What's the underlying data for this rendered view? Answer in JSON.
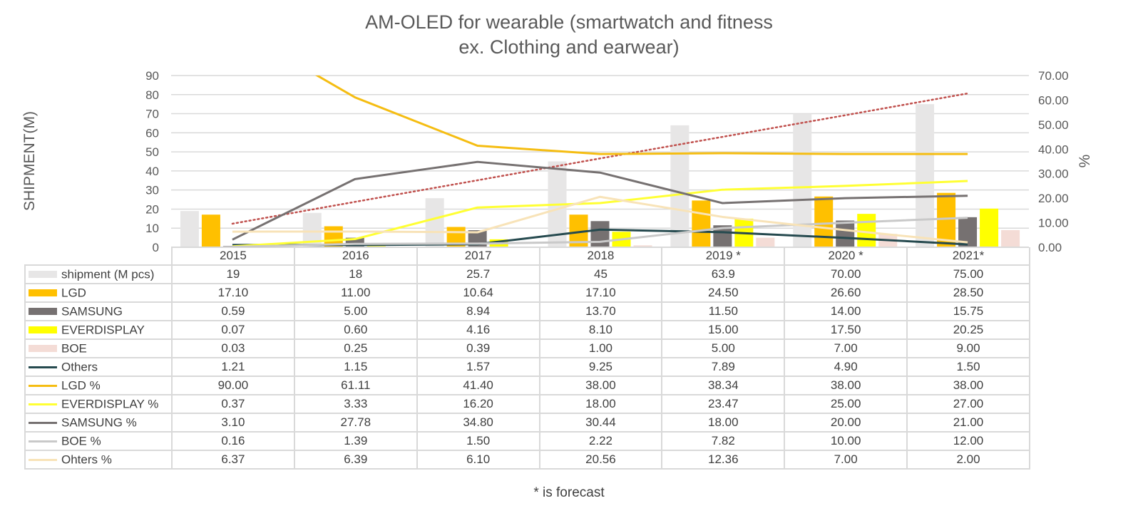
{
  "chart_data": {
    "type": "bar",
    "title_line1": "AM-OLED for wearable (smartwatch and fitness",
    "title_line2": "ex. Clothing and earwear)",
    "ylabel": "SHIPMENT(M)",
    "y2label": "%",
    "ylim": [
      0,
      90
    ],
    "y2lim": [
      0,
      70
    ],
    "yticks": [
      "0",
      "10",
      "20",
      "30",
      "40",
      "50",
      "60",
      "70",
      "80",
      "90"
    ],
    "y2ticks": [
      "0.00",
      "10.00",
      "20.00",
      "30.00",
      "40.00",
      "50.00",
      "60.00",
      "70.00"
    ],
    "categories": [
      "2015",
      "2016",
      "2017",
      "2018",
      "2019 *",
      "2020 *",
      "2021*"
    ],
    "grid": true,
    "legend": "data-table",
    "series": [
      {
        "name": "shipment (M pcs)",
        "type": "bar",
        "axis": "left",
        "color": "#e7e6e6",
        "values": [
          19,
          18,
          25.7,
          45,
          63.9,
          70,
          75
        ],
        "labels": [
          "19",
          "18",
          "25.7",
          "45",
          "63.9",
          "70.00",
          "75.00"
        ]
      },
      {
        "name": "LGD",
        "type": "bar",
        "axis": "left",
        "color": "#ffc000",
        "values": [
          17.1,
          11.0,
          10.64,
          17.1,
          24.5,
          26.6,
          28.5
        ],
        "labels": [
          "17.10",
          "11.00",
          "10.64",
          "17.10",
          "24.50",
          "26.60",
          "28.50"
        ]
      },
      {
        "name": "SAMSUNG",
        "type": "bar",
        "axis": "left",
        "color": "#767171",
        "values": [
          0.59,
          5.0,
          8.94,
          13.7,
          11.5,
          14.0,
          15.75
        ],
        "labels": [
          "0.59",
          "5.00",
          "8.94",
          "13.70",
          "11.50",
          "14.00",
          "15.75"
        ]
      },
      {
        "name": "EVERDISPLAY",
        "type": "bar",
        "axis": "left",
        "color": "#ffff00",
        "values": [
          0.07,
          0.6,
          4.16,
          8.1,
          15.0,
          17.5,
          20.25
        ],
        "labels": [
          "0.07",
          "0.60",
          "4.16",
          "8.10",
          "15.00",
          "17.50",
          "20.25"
        ]
      },
      {
        "name": "BOE",
        "type": "bar",
        "axis": "left",
        "color": "#f4dcd6",
        "values": [
          0.03,
          0.25,
          0.39,
          1.0,
          5.0,
          7.0,
          9.0
        ],
        "labels": [
          "0.03",
          "0.25",
          "0.39",
          "1.00",
          "5.00",
          "7.00",
          "9.00"
        ]
      },
      {
        "name": "Others",
        "type": "line",
        "axis": "left",
        "color": "#264a4f",
        "values": [
          1.21,
          1.15,
          1.57,
          9.25,
          7.89,
          4.9,
          1.5
        ],
        "labels": [
          "1.21",
          "1.15",
          "1.57",
          "9.25",
          "7.89",
          "4.90",
          "1.50"
        ]
      },
      {
        "name": "LGD %",
        "type": "line",
        "axis": "right",
        "color": "#f5bd12",
        "values": [
          90.0,
          61.11,
          41.4,
          38.0,
          38.34,
          38.0,
          38.0
        ],
        "labels": [
          "90.00",
          "61.11",
          "41.40",
          "38.00",
          "38.34",
          "38.00",
          "38.00"
        ]
      },
      {
        "name": "EVERDISPLAY %",
        "type": "line",
        "axis": "right",
        "color": "#ffff33",
        "values": [
          0.37,
          3.33,
          16.2,
          18.0,
          23.47,
          25.0,
          27.0
        ],
        "labels": [
          "0.37",
          "3.33",
          "16.20",
          "18.00",
          "23.47",
          "25.00",
          "27.00"
        ]
      },
      {
        "name": "SAMSUNG %",
        "type": "line",
        "axis": "right",
        "color": "#767171",
        "values": [
          3.1,
          27.78,
          34.8,
          30.44,
          18.0,
          20.0,
          21.0
        ],
        "labels": [
          "3.10",
          "27.78",
          "34.80",
          "30.44",
          "18.00",
          "20.00",
          "21.00"
        ]
      },
      {
        "name": "BOE %",
        "type": "line",
        "axis": "right",
        "color": "#c9c9c9",
        "values": [
          0.16,
          1.39,
          1.5,
          2.22,
          7.82,
          10.0,
          12.0
        ],
        "labels": [
          "0.16",
          "1.39",
          "1.50",
          "2.22",
          "7.82",
          "10.00",
          "12.00"
        ]
      },
      {
        "name": "Ohters %",
        "type": "line",
        "axis": "right",
        "color": "#f8e3b8",
        "values": [
          6.37,
          6.39,
          6.1,
          20.56,
          12.36,
          7.0,
          2.0
        ],
        "labels": [
          "6.37",
          "6.39",
          "6.10",
          "20.56",
          "12.36",
          "7.00",
          "2.00"
        ]
      }
    ],
    "trendline": {
      "of": "shipment (M pcs)",
      "style": "dotted",
      "color": "#c0504d",
      "values": [
        9.6,
        18.5,
        27.3,
        36.2,
        45.0,
        53.8,
        62.7
      ]
    },
    "footnote": "* is forecast"
  }
}
